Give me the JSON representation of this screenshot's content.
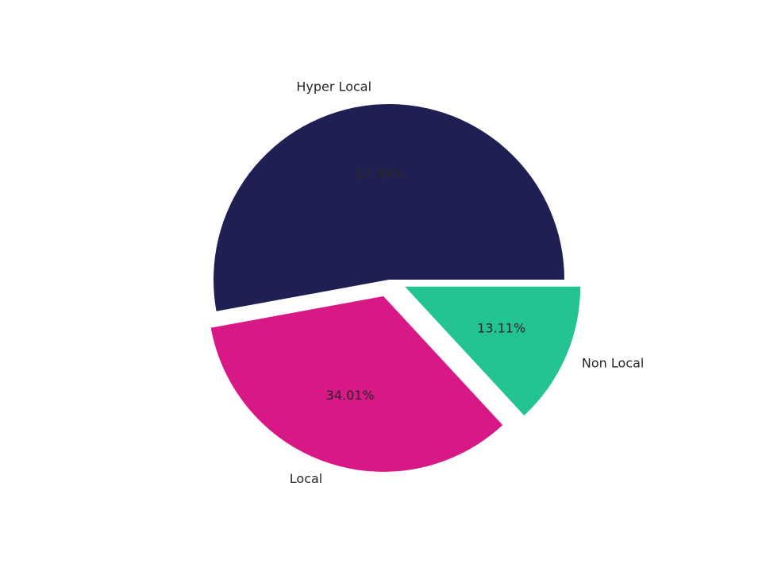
{
  "chart_data": {
    "type": "pie",
    "categories": [
      "Hyper Local",
      "Local",
      "Non Local"
    ],
    "values": [
      52.88,
      34.01,
      13.11
    ],
    "value_labels": [
      "52.88%",
      "34.01%",
      "13.11%"
    ],
    "colors": [
      "#1f1f54",
      "#d81886",
      "#23c491"
    ]
  }
}
